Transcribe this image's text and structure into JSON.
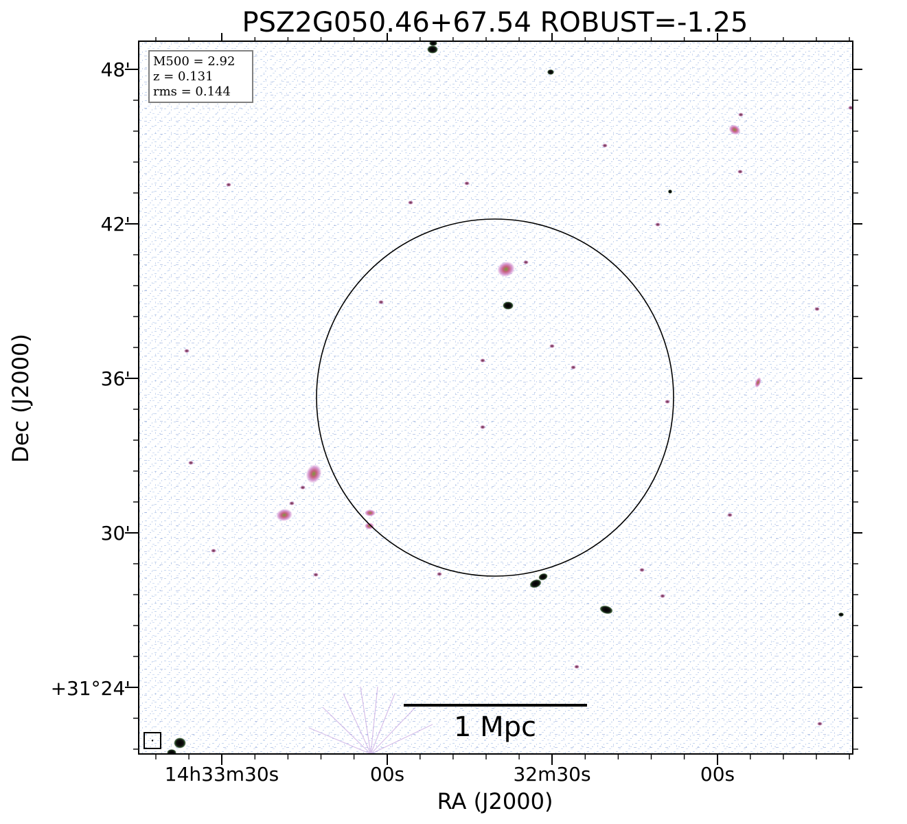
{
  "chart_data": {
    "type": "image",
    "title": "PSZ2G050.46+67.54 ROBUST=-1.25",
    "xlabel": "RA (J2000)",
    "ylabel": "Dec (J2000)",
    "x_ticks": [
      "14h33m30s",
      "00s",
      "32m30s",
      "00s"
    ],
    "y_ticks": [
      "48'",
      "42'",
      "36'",
      "30'",
      "+31°24'"
    ],
    "info_box": [
      "M500 = 2.92",
      "z = 0.131",
      "rms = 0.144"
    ],
    "scale_bar_label": "1 Mpc",
    "colors": {
      "noise": "#7f9fd8",
      "faint_emission": "#c89ad0",
      "mid_emission": "#c76a9a",
      "bright_emission": "#0d0d0d",
      "axes": "#000000"
    }
  }
}
